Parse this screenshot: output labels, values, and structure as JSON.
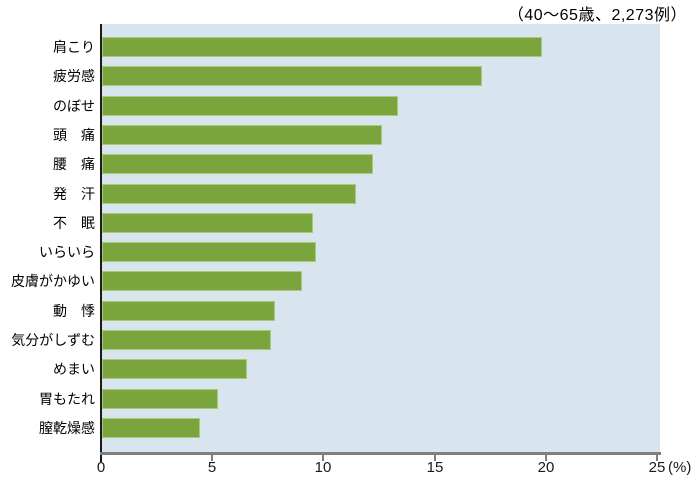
{
  "header": {
    "sample_note": "（40～65歳、2,273例）"
  },
  "colors": {
    "bar": "#7aa53d",
    "bar_edge": "#aec77f",
    "plot_background": "#d8e4ee",
    "axis_line": "#7f7f7f",
    "y_axis_line": "#1a1a1a",
    "text": "#000000"
  },
  "chart_data": {
    "type": "bar",
    "orientation": "horizontal",
    "title": "（40～65歳、2,273例）",
    "categories": [
      "肩こり",
      "疲労感",
      "のぼせ",
      "頭　痛",
      "腰　痛",
      "発　汗",
      "不　眠",
      "いらいら",
      "皮膚がかゆい",
      "動　悸",
      "気分がしずむ",
      "めまい",
      "胃もたれ",
      "膣乾燥感"
    ],
    "values": [
      19.8,
      17.1,
      13.3,
      12.6,
      12.2,
      11.4,
      9.5,
      9.6,
      9.0,
      7.8,
      7.6,
      6.5,
      5.2,
      4.4
    ],
    "xlabel": "(%)",
    "ylabel": "",
    "x_ticks": [
      0,
      5,
      10,
      15,
      20,
      25
    ],
    "xlim": [
      0,
      25
    ],
    "grid": false,
    "legend": false
  }
}
